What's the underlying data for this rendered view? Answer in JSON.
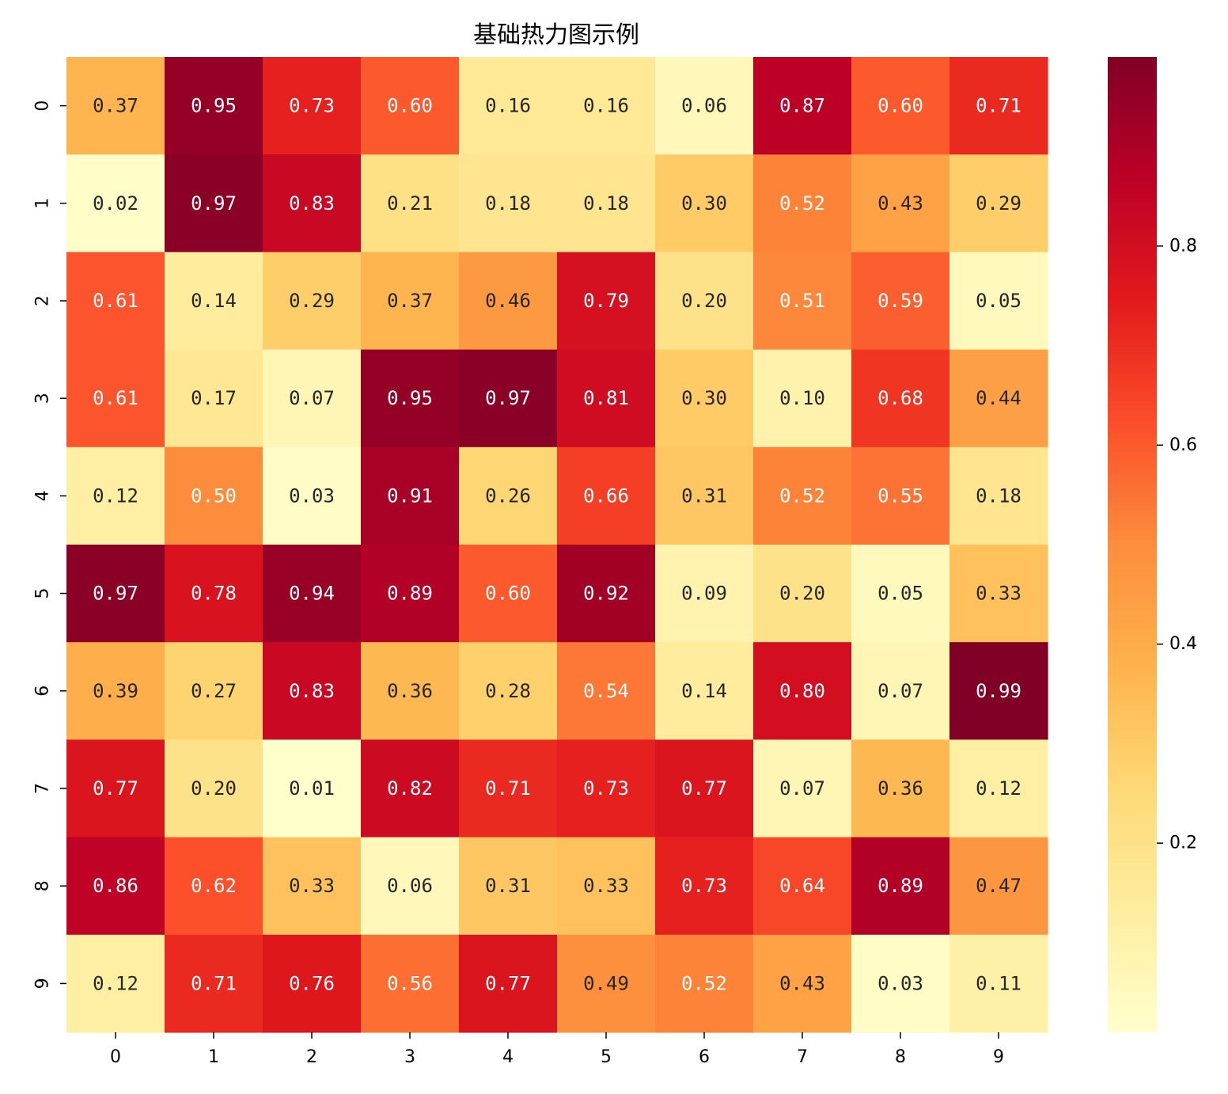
{
  "chart_data": {
    "type": "heatmap",
    "title": "基础热力图示例",
    "xlabel": "",
    "ylabel": "",
    "x_categories": [
      "0",
      "1",
      "2",
      "3",
      "4",
      "5",
      "6",
      "7",
      "8",
      "9"
    ],
    "y_categories": [
      "0",
      "1",
      "2",
      "3",
      "4",
      "5",
      "6",
      "7",
      "8",
      "9"
    ],
    "values": [
      [
        0.37,
        0.95,
        0.73,
        0.6,
        0.16,
        0.16,
        0.06,
        0.87,
        0.6,
        0.71
      ],
      [
        0.02,
        0.97,
        0.83,
        0.21,
        0.18,
        0.18,
        0.3,
        0.52,
        0.43,
        0.29
      ],
      [
        0.61,
        0.14,
        0.29,
        0.37,
        0.46,
        0.79,
        0.2,
        0.51,
        0.59,
        0.05
      ],
      [
        0.61,
        0.17,
        0.07,
        0.95,
        0.97,
        0.81,
        0.3,
        0.1,
        0.68,
        0.44
      ],
      [
        0.12,
        0.5,
        0.03,
        0.91,
        0.26,
        0.66,
        0.31,
        0.52,
        0.55,
        0.18
      ],
      [
        0.97,
        0.78,
        0.94,
        0.89,
        0.6,
        0.92,
        0.09,
        0.2,
        0.05,
        0.33
      ],
      [
        0.39,
        0.27,
        0.83,
        0.36,
        0.28,
        0.54,
        0.14,
        0.8,
        0.07,
        0.99
      ],
      [
        0.77,
        0.2,
        0.01,
        0.82,
        0.71,
        0.73,
        0.77,
        0.07,
        0.36,
        0.12
      ],
      [
        0.86,
        0.62,
        0.33,
        0.06,
        0.31,
        0.33,
        0.73,
        0.64,
        0.89,
        0.47
      ],
      [
        0.12,
        0.71,
        0.76,
        0.56,
        0.77,
        0.49,
        0.52,
        0.43,
        0.03,
        0.11
      ]
    ],
    "value_labels": [
      [
        "0.37",
        "0.95",
        "0.73",
        "0.60",
        "0.16",
        "0.16",
        "0.06",
        "0.87",
        "0.60",
        "0.71"
      ],
      [
        "0.02",
        "0.97",
        "0.83",
        "0.21",
        "0.18",
        "0.18",
        "0.30",
        "0.52",
        "0.43",
        "0.29"
      ],
      [
        "0.61",
        "0.14",
        "0.29",
        "0.37",
        "0.46",
        "0.79",
        "0.20",
        "0.51",
        "0.59",
        "0.05"
      ],
      [
        "0.61",
        "0.17",
        "0.07",
        "0.95",
        "0.97",
        "0.81",
        "0.30",
        "0.10",
        "0.68",
        "0.44"
      ],
      [
        "0.12",
        "0.50",
        "0.03",
        "0.91",
        "0.26",
        "0.66",
        "0.31",
        "0.52",
        "0.55",
        "0.18"
      ],
      [
        "0.97",
        "0.78",
        "0.94",
        "0.89",
        "0.60",
        "0.92",
        "0.09",
        "0.20",
        "0.05",
        "0.33"
      ],
      [
        "0.39",
        "0.27",
        "0.83",
        "0.36",
        "0.28",
        "0.54",
        "0.14",
        "0.80",
        "0.07",
        "0.99"
      ],
      [
        "0.77",
        "0.20",
        "0.01",
        "0.82",
        "0.71",
        "0.73",
        "0.77",
        "0.07",
        "0.36",
        "0.12"
      ],
      [
        "0.86",
        "0.62",
        "0.33",
        "0.06",
        "0.31",
        "0.33",
        "0.73",
        "0.64",
        "0.89",
        "0.47"
      ],
      [
        "0.12",
        "0.71",
        "0.76",
        "0.56",
        "0.77",
        "0.49",
        "0.52",
        "0.43",
        "0.03",
        "0.11"
      ]
    ],
    "colormap": "YlOrRd",
    "color_range": [
      0.01,
      0.99
    ],
    "colorbar": {
      "ticks": [
        0.2,
        0.4,
        0.6,
        0.8
      ],
      "tick_labels": [
        "0.2",
        "0.4",
        "0.6",
        "0.8"
      ]
    },
    "colormap_stops": [
      "#ffffcc",
      "#ffeda0",
      "#fed976",
      "#feb24c",
      "#fd8d3c",
      "#fc4e2a",
      "#e31a1c",
      "#bd0026",
      "#800026"
    ],
    "grid": false,
    "legend": "colorbar-right"
  }
}
